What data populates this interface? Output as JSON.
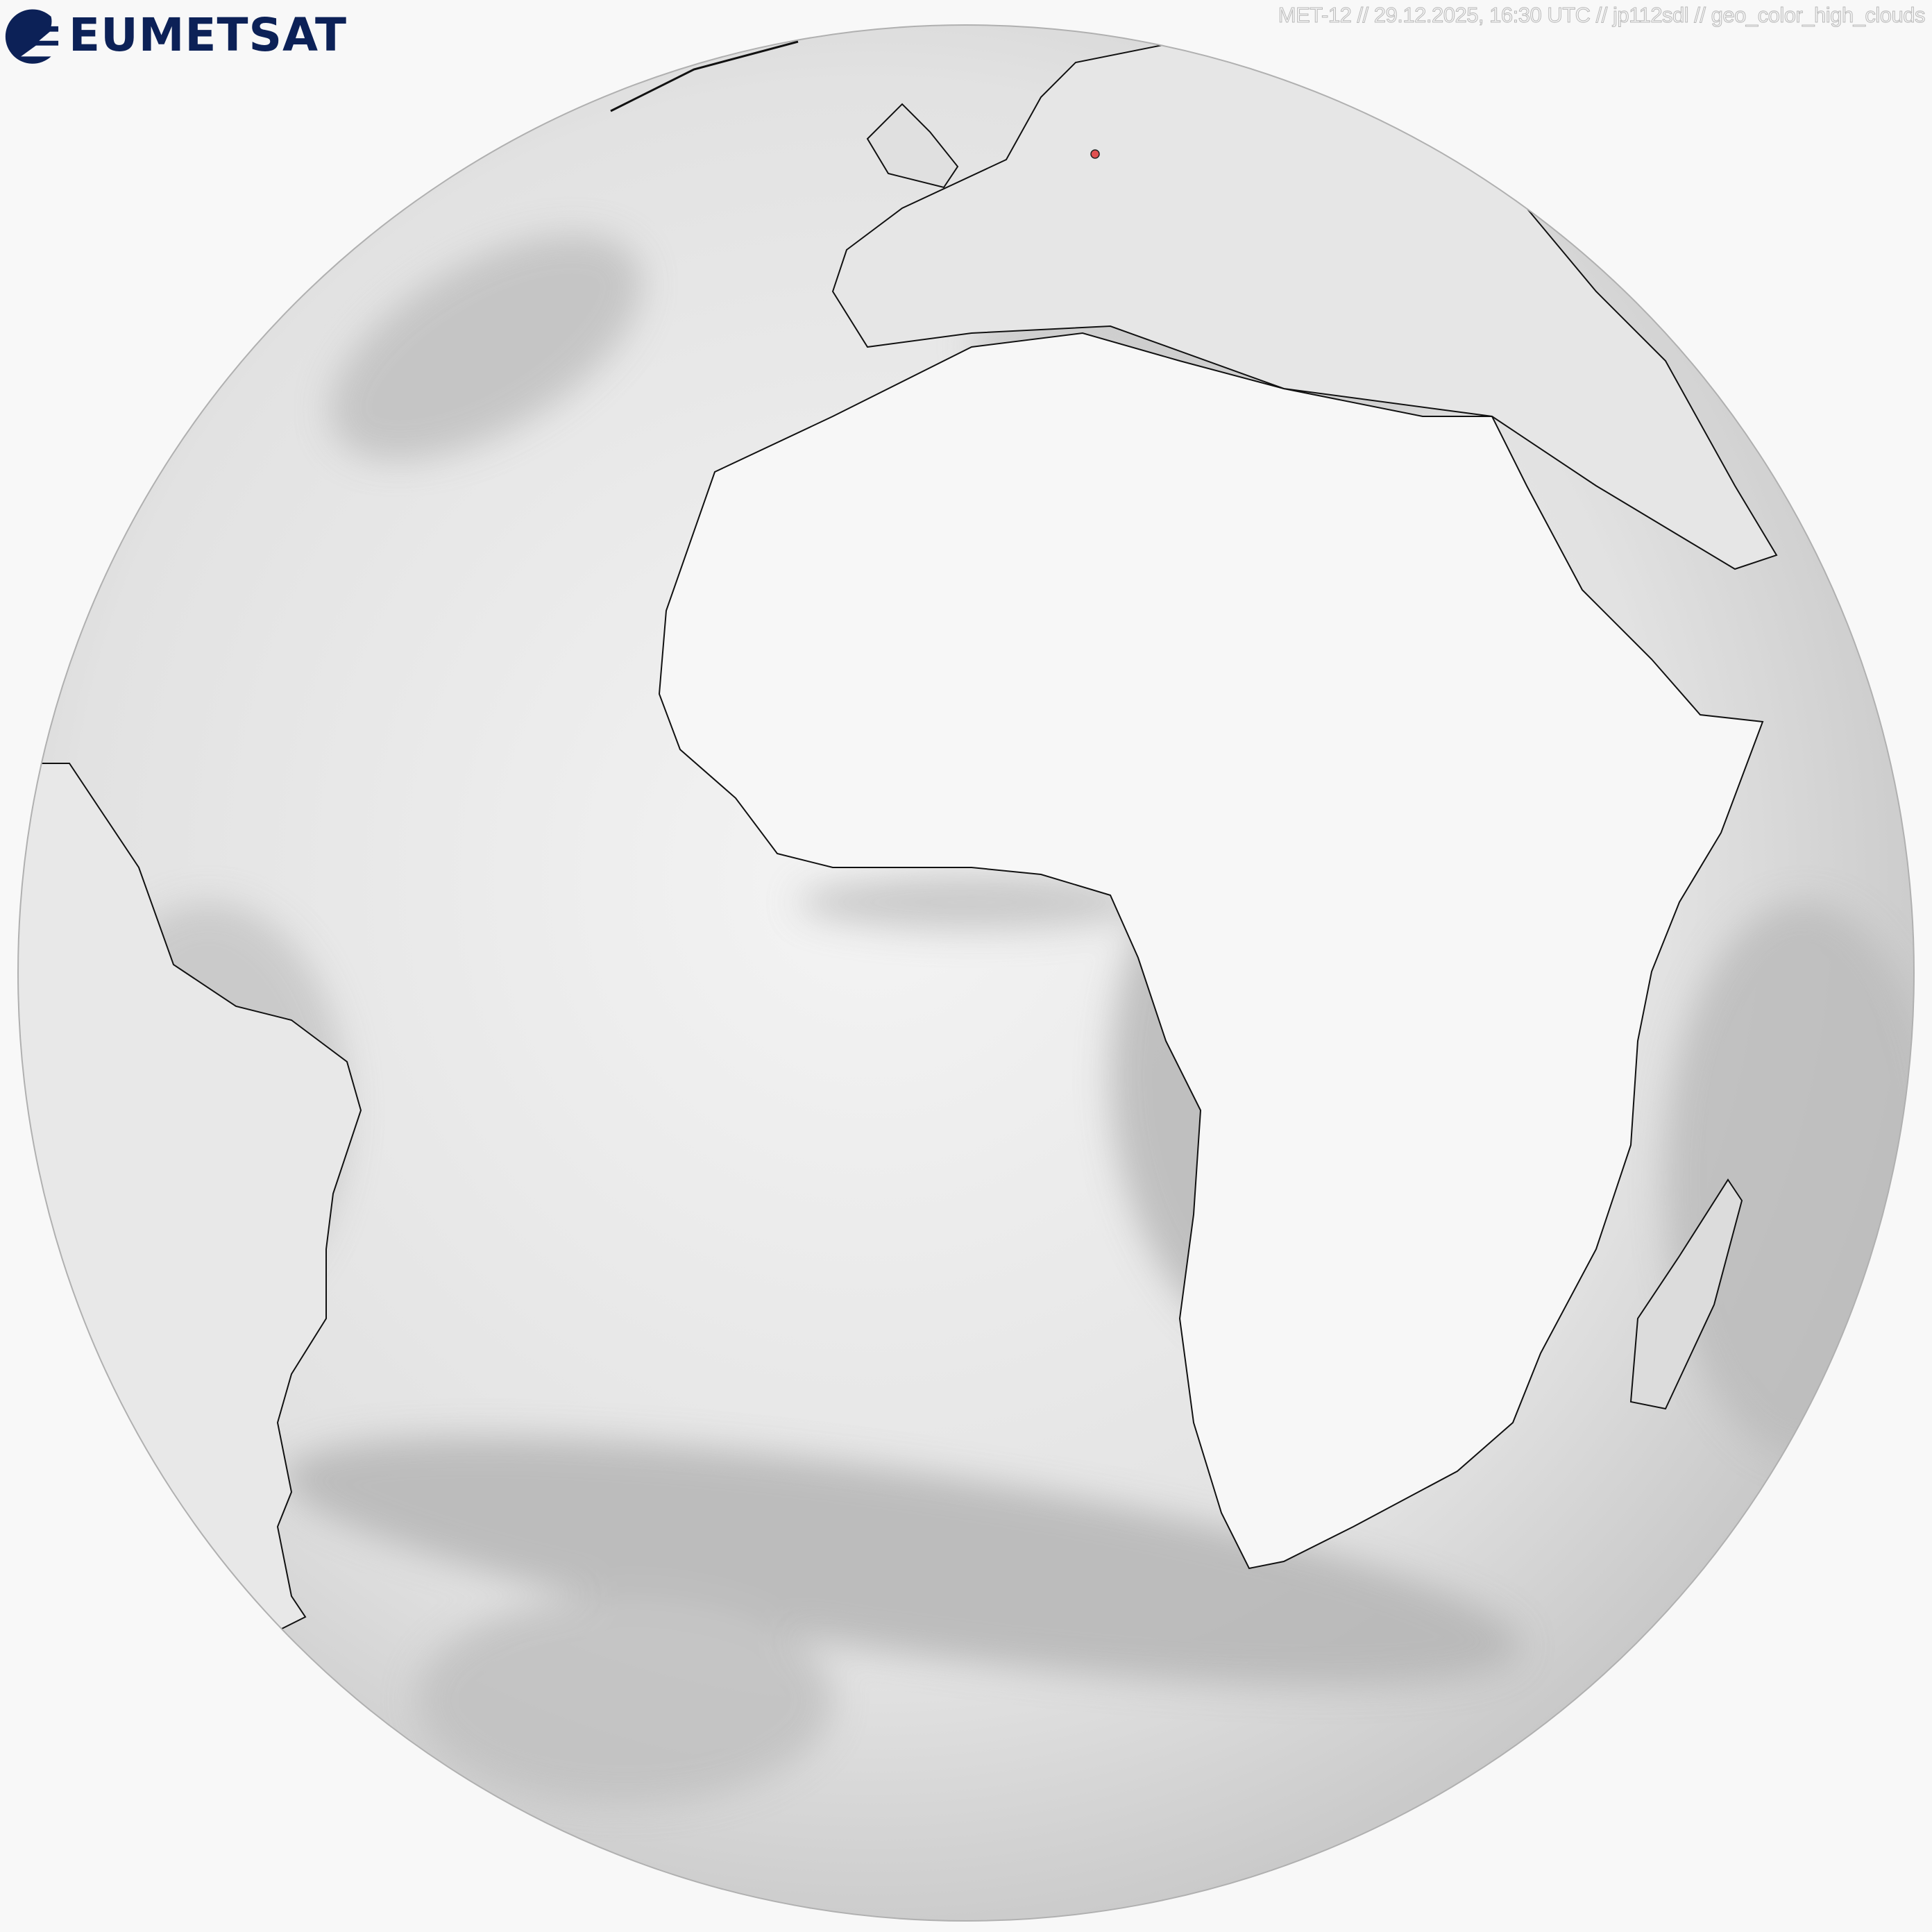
{
  "logo": {
    "text": "EUMETSAT",
    "color": "#0c2157"
  },
  "caption": "MET-12 // 29.12.2025, 16:30 UTC // jp112sdl // geo_color_high_clouds",
  "map": {
    "projection": "geostationary full disk",
    "style": "greyscale clouds with black coastlines and grey country borders",
    "marker_color": "#e05050"
  }
}
